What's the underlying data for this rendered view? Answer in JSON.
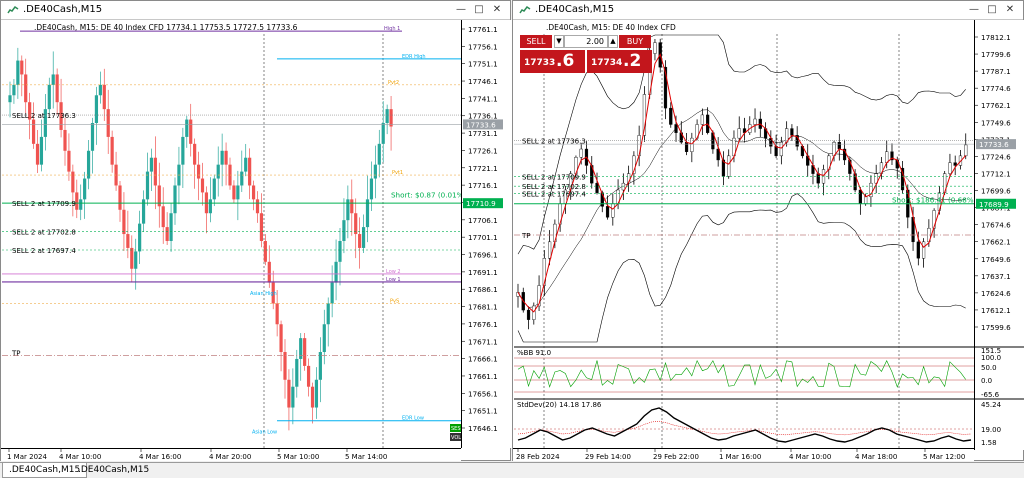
{
  "windows": [
    {
      "title": ".DE40Cash,M15",
      "info_line": ".DE40Cash, M15:  DE 40 Index CFD   17734.1 17753.5 17727.5 17733.6",
      "price_labels": [
        "17761.1",
        "17756.1",
        "17751.1",
        "17746.1",
        "17741.1",
        "17736.1",
        "17731.1",
        "17726.1",
        "17721.1",
        "17716.1",
        "17711.1",
        "17706.1",
        "17701.1",
        "17696.1",
        "17691.1",
        "17686.1",
        "17681.1",
        "17676.1",
        "17671.1",
        "17666.1",
        "17661.1",
        "17656.1",
        "17651.1",
        "17646.1"
      ],
      "current_price": "17733.6",
      "short_price": "17710.9",
      "time_labels": [
        "1 Mar 2024",
        "4 Mar 10:00",
        "4 Mar 16:00",
        "4 Mar 20:00",
        "5 Mar 10:00",
        "5 Mar 14:00"
      ],
      "levels": [
        {
          "label": "SELL 2 at 17736.3"
        },
        {
          "label": "SELL 2 at 17709.9"
        },
        {
          "label": "SELL 2 at 17702.8"
        },
        {
          "label": "SELL 2 at 17697.4"
        },
        {
          "label": "TP"
        }
      ],
      "annotations": {
        "high1": "High 1",
        "edr_high": "EDR High",
        "pivot_r2": "Pvt2",
        "pivot_r1": "Pvt1",
        "low2": "Low 2",
        "low1": "Low 1",
        "pivot_s": "PvS",
        "asian": "Asian High",
        "edr_low": "EDR Low",
        "asian_low": "Asian Low",
        "short_info": "Short:  $0.87 (0.01%)"
      },
      "badges": {
        "ses": "SES",
        "vol": "VOL"
      }
    },
    {
      "title": ".DE40Cash,M15",
      "info_line": ".DE40Cash, M15:  DE 40 Index CFD",
      "order_panel": {
        "sell_label": "SELL",
        "buy_label": "BUY",
        "lot_value": "2.00",
        "sell_price_small": "17733",
        "sell_price_large": ".6",
        "buy_price_small": "17734",
        "buy_price_large": ".2"
      },
      "price_labels": [
        "17812.1",
        "17799.6",
        "17787.1",
        "17774.6",
        "17762.1",
        "17749.6",
        "17737.1",
        "17724.6",
        "17712.1",
        "17699.6",
        "17687.1",
        "17674.6",
        "17662.1",
        "17649.6",
        "17637.1",
        "17624.6",
        "17612.1",
        "17599.6"
      ],
      "current_price": "17733.6",
      "short_price": "17689.9",
      "levels": [
        {
          "label": "SELL 2 at 17736.3"
        },
        {
          "label": "SELL 2 at 17709.9"
        },
        {
          "label": "SELL 2 at 17702.8"
        },
        {
          "label": "SELL 2 at 17697.4"
        },
        {
          "label": "TP"
        }
      ],
      "short_info": "Short:  $186.41 (0.68%)",
      "pctb": {
        "title": "%BB 91.0",
        "scale": [
          "151.5",
          "100.0",
          "50.0",
          "0.0",
          "-65.6"
        ]
      },
      "stddev": {
        "title": "StdDev(20) 14.18 17.86",
        "scale": [
          "45.24",
          "19.00",
          "1.58"
        ]
      },
      "time_labels": [
        "28 Feb 2024",
        "29 Feb 14:00",
        "29 Feb 22:00",
        "1 Mar 16:00",
        "4 Mar 10:00",
        "4 Mar 18:00",
        "5 Mar 12:00"
      ]
    }
  ],
  "tabs": [
    ".DE40Cash,M15",
    ".DE40Cash,M15"
  ],
  "colors": {
    "bull": "#26a69a",
    "bear": "#ef5350",
    "sell": "#c3161c",
    "level_green": "#00b050",
    "level_purple": "#7030a0",
    "edr": "#00b0f0"
  }
}
